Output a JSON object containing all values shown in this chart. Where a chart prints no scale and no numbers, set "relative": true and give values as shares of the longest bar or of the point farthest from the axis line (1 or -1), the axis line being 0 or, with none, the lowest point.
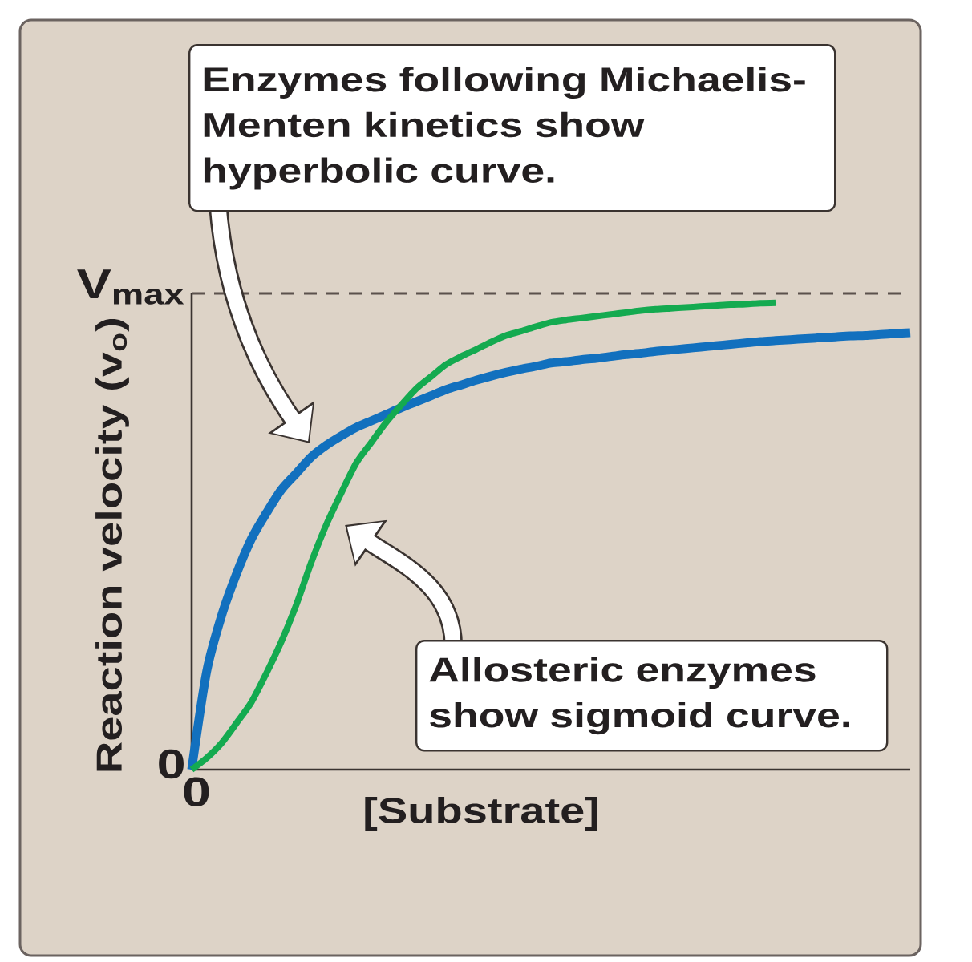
{
  "chart_data": {
    "type": "line",
    "relative": true,
    "xlabel": "[Substrate]",
    "ylabel": "Reaction velocity (v$_{o}$)",
    "line_style": "solid",
    "categories": [
      null,
      null,
      null,
      null,
      null,
      null,
      null,
      null,
      null,
      null,
      null,
      null,
      null,
      null,
      null,
      null,
      null,
      null,
      null,
      null,
      null,
      null,
      null,
      null,
      null,
      null,
      null,
      null,
      null,
      null,
      null,
      null,
      null,
      null,
      null,
      null,
      null,
      null,
      null,
      null,
      null,
      null,
      null,
      null,
      null,
      null,
      null,
      null,
      null
    ],
    "series": [
      {
        "color": "#1270be",
        "values": [
          0,
          0.21,
          0.33,
          0.42,
          0.495,
          0.55,
          0.6,
          0.635,
          0.67,
          0.695,
          0.715,
          0.733,
          0.747,
          0.761,
          0.775,
          0.788,
          0.801,
          0.814,
          0.824,
          0.834,
          0.843,
          0.851,
          0.858,
          0.864,
          0.871,
          0.874,
          0.878,
          0.881,
          0.885,
          0.889,
          0.892,
          0.896,
          0.899,
          0.902,
          0.905,
          0.908,
          0.911,
          0.914,
          0.917,
          0.919,
          0.921,
          0.923,
          0.925,
          0.927,
          0.929,
          0.93,
          0.932,
          0.934,
          0.936
        ]
      },
      {
        "color": "#14aa50",
        "values": [
          0,
          0.025,
          0.057,
          0.1,
          0.145,
          0.207,
          0.275,
          0.354,
          0.445,
          0.525,
          0.593,
          0.657,
          0.701,
          0.744,
          0.781,
          0.816,
          0.842,
          0.868,
          0.885,
          0.9,
          0.916,
          0.93,
          0.939,
          0.949,
          0.958,
          0.963,
          0.967,
          0.971,
          0.975,
          0.979,
          0.983,
          0.986,
          0.988,
          0.99,
          0.992,
          0.994,
          0.996,
          0.997,
          0.999,
          1.0,
          null,
          null,
          null,
          null,
          null,
          null,
          null,
          null,
          null
        ]
      }
    ],
    "ref_lines": [
      {
        "axis": "y",
        "value": 1.02,
        "label": "V$_{max}$",
        "line_style": "dashed",
        "color": "#5b514c"
      }
    ],
    "annotations": [
      "Enzymes following Michaelis-Menten kinetics show hyperbolic curve.",
      "Allosteric enzymes show sigmoid curve.",
      "0",
      "0"
    ]
  }
}
